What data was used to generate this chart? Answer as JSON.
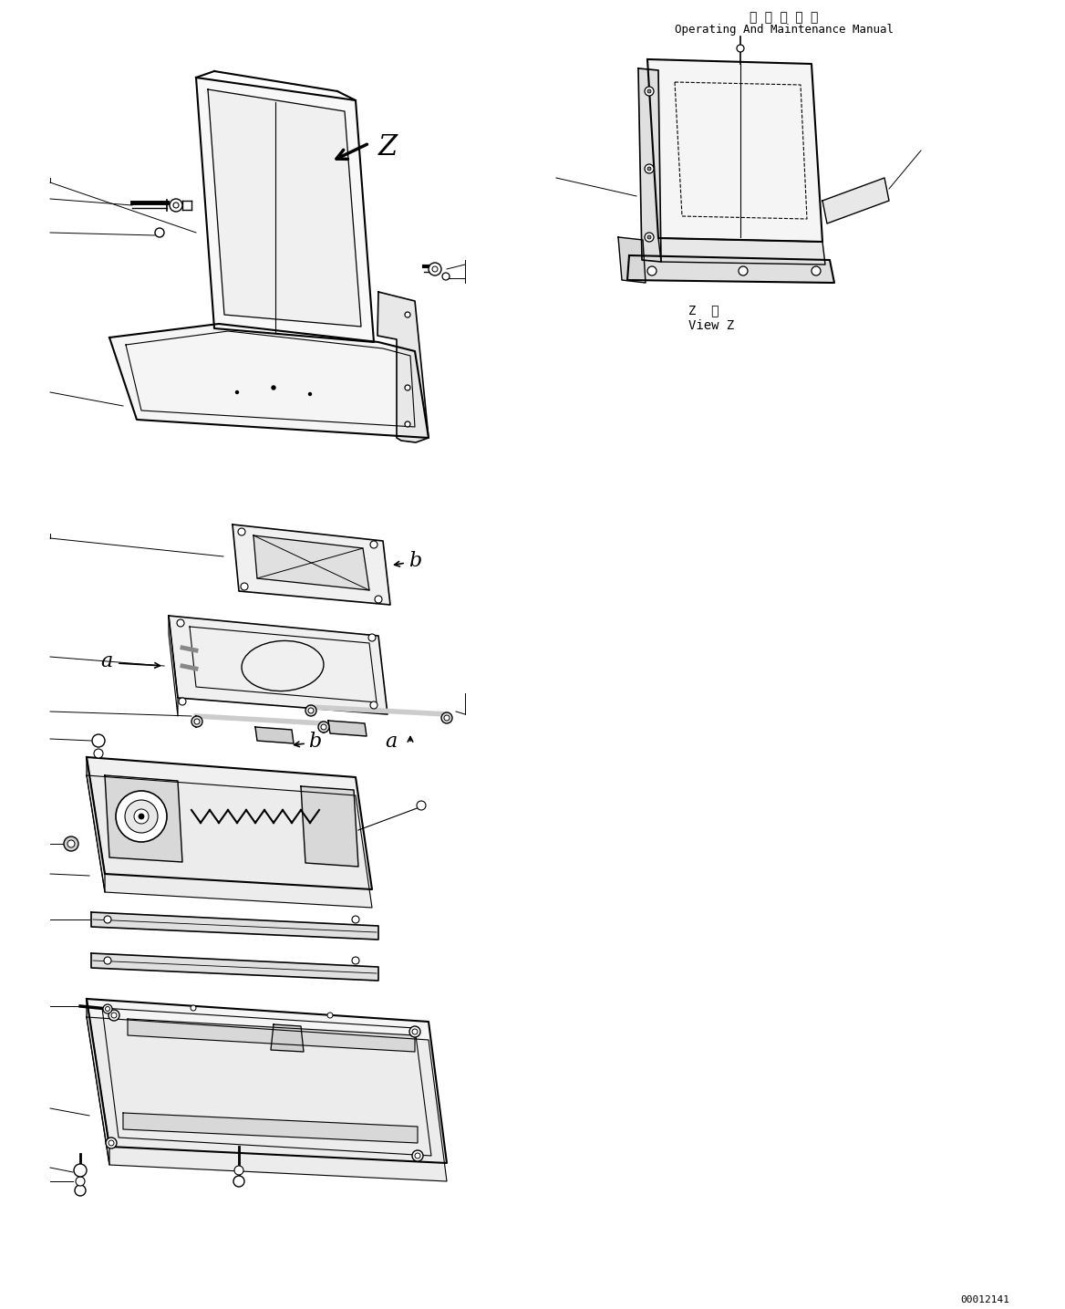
{
  "title_japanese": "取 扱 説 明 書",
  "title_english": "Operating And Maintenance Manual",
  "view_label_japanese": "Z  視",
  "view_label_english": "View Z",
  "part_number": "00012141",
  "arrow_label": "Z",
  "label_a": "a",
  "label_b": "b",
  "bg_color": "#ffffff",
  "line_color": "#000000",
  "font_color": "#000000",
  "title_fontsize": 10,
  "label_fontsize": 16,
  "small_fontsize": 9,
  "part_num_fontsize": 8
}
